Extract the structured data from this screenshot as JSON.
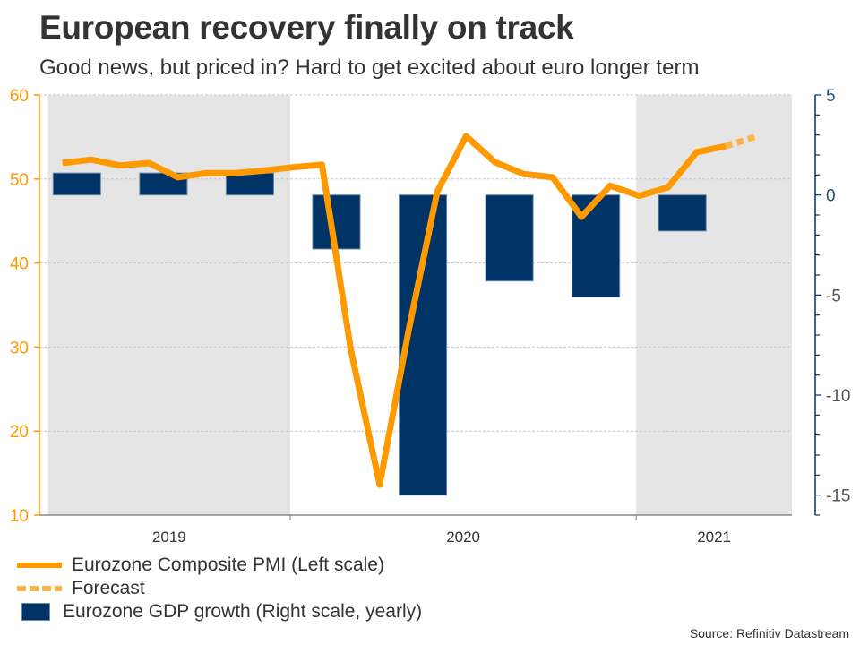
{
  "title": "European recovery finally on track",
  "subtitle": "Good news, but priced in? Hard to get excited about euro longer term",
  "source": "Source: Refinitiv Datastream",
  "legend": [
    {
      "label": "Eurozone Composite PMI (Left scale)",
      "style": "line",
      "color": "#ff9900"
    },
    {
      "label": "Forecast",
      "style": "dashed",
      "color": "#ffb347"
    },
    {
      "label": "Eurozone GDP growth (Right scale, yearly)",
      "style": "bar",
      "color": "#003366"
    }
  ],
  "chart_data": {
    "type": "bar+line",
    "title": "European recovery finally on track",
    "subtitle": "Good news, but priced in? Hard to get excited about euro longer term",
    "x_tick_labels": [
      "2019",
      "2020",
      "2021"
    ],
    "shaded_years": [
      "2019",
      "2021"
    ],
    "left_axis": {
      "label": "Eurozone Composite PMI",
      "ylim": [
        10,
        60
      ],
      "ticks": [
        10,
        20,
        30,
        40,
        50,
        60
      ],
      "color": "#ff9900"
    },
    "right_axis": {
      "label": "Eurozone GDP growth",
      "ylim": [
        -16,
        5
      ],
      "ticks": [
        -15,
        -10,
        -5,
        0,
        5
      ],
      "color": "#003366"
    },
    "grid": true,
    "legend_position": "bottom-left",
    "series": [
      {
        "name": "Eurozone Composite PMI (Left scale)",
        "type": "line",
        "axis": "left",
        "color": "#ff9900",
        "x": [
          0.5,
          1.5,
          2.5,
          3.5,
          4.5,
          5.5,
          6.5,
          7.5,
          8.5,
          9.5,
          10.5,
          11.5,
          12.5,
          13.5,
          14.5,
          15.5,
          16.5,
          17.5,
          18.5,
          19.5,
          20.5,
          21.5,
          22.5,
          23.5
        ],
        "values": [
          51.9,
          52.3,
          51.6,
          51.9,
          50.2,
          50.7,
          50.7,
          51.0,
          51.4,
          51.7,
          29.7,
          13.6,
          31.9,
          48.5,
          55.1,
          52.0,
          50.6,
          50.2,
          45.5,
          49.2,
          48.0,
          49.0,
          53.2,
          53.9
        ]
      },
      {
        "name": "Forecast",
        "type": "line",
        "style": "dashed",
        "axis": "left",
        "color": "#ffb347",
        "x": [
          23.5,
          24.5
        ],
        "values": [
          53.9,
          55.0
        ]
      },
      {
        "name": "Eurozone GDP growth (Right scale, yearly)",
        "type": "bar",
        "axis": "right",
        "color": "#003366",
        "x": [
          1,
          4,
          7,
          10,
          13,
          16,
          19,
          22
        ],
        "values": [
          1.1,
          1.1,
          1.1,
          -2.7,
          -15.0,
          -4.3,
          -5.1,
          -1.8
        ]
      }
    ],
    "x_range": [
      -0.3,
      25.8
    ],
    "year_boundaries": [
      0,
      8.4,
      20.4,
      25.8
    ]
  }
}
